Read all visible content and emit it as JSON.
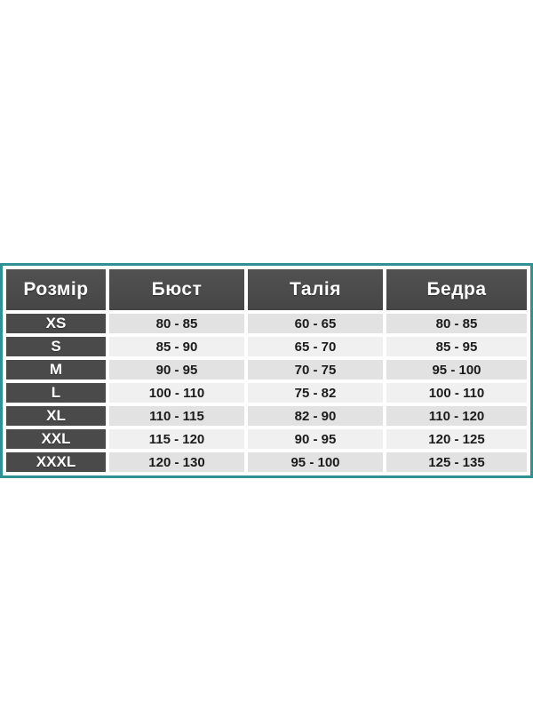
{
  "chart_data": {
    "type": "table",
    "title": "",
    "columns": [
      "Розмір",
      "Бюст",
      "Талія",
      "Бедра"
    ],
    "rows": [
      [
        "XS",
        "80 - 85",
        "60 - 65",
        "80 - 85"
      ],
      [
        "S",
        "85 - 90",
        "65 - 70",
        "85 - 95"
      ],
      [
        "M",
        "90 - 95",
        "70 - 75",
        "95 - 100"
      ],
      [
        "L",
        "100 - 110",
        "75 - 82",
        "100 - 110"
      ],
      [
        "XL",
        "110 - 115",
        "82 - 90",
        "110 - 120"
      ],
      [
        "XXL",
        "115 - 120",
        "90 - 95",
        "120 - 125"
      ],
      [
        "XXXL",
        "120 - 130",
        "95 - 100",
        "125 - 135"
      ]
    ]
  },
  "colors": {
    "page_background": "#ffffff",
    "table_border": "#2f9193",
    "header_background": "#4a4a4a",
    "size_column_background": "#4a4a4a",
    "row_stripe_a": "#e2e2e2",
    "row_stripe_b": "#f0f0f0",
    "header_text": "#ffffff",
    "value_text": "#1b1b1b"
  }
}
